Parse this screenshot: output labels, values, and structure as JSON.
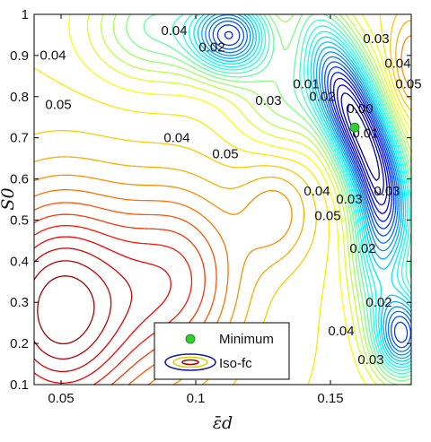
{
  "chart_data": {
    "type": "contour",
    "xlabel": "ε̄d",
    "ylabel": "S0",
    "xlim": [
      0.04,
      0.18
    ],
    "ylim": [
      0.1,
      1.0
    ],
    "x_ticks": [
      "0.05",
      "0.1",
      "0.15"
    ],
    "y_ticks": [
      "0.1",
      "0.2",
      "0.3",
      "0.4",
      "0.5",
      "0.6",
      "0.7",
      "0.8",
      "0.9",
      "1"
    ],
    "grid": false,
    "colormap": "jet",
    "contour_labels": [
      {
        "text": "0.04",
        "x": 0.047,
        "y": 0.89
      },
      {
        "text": "0.04",
        "x": 0.092,
        "y": 0.95
      },
      {
        "text": "0.02",
        "x": 0.106,
        "y": 0.91
      },
      {
        "text": "0.05",
        "x": 0.049,
        "y": 0.77
      },
      {
        "text": "0.03",
        "x": 0.127,
        "y": 0.78
      },
      {
        "text": "0.04",
        "x": 0.093,
        "y": 0.69
      },
      {
        "text": "0.05",
        "x": 0.111,
        "y": 0.65
      },
      {
        "text": "0.02",
        "x": 0.147,
        "y": 0.79
      },
      {
        "text": "0.01",
        "x": 0.141,
        "y": 0.82
      },
      {
        "text": "0.03",
        "x": 0.167,
        "y": 0.93
      },
      {
        "text": "0.04",
        "x": 0.175,
        "y": 0.87
      },
      {
        "text": "0.05",
        "x": 0.179,
        "y": 0.82
      },
      {
        "text": "0.00",
        "x": 0.161,
        "y": 0.76
      },
      {
        "text": "0.04",
        "x": 0.145,
        "y": 0.56
      },
      {
        "text": "0.05",
        "x": 0.149,
        "y": 0.5
      },
      {
        "text": "0.03",
        "x": 0.157,
        "y": 0.54
      },
      {
        "text": "0.01",
        "x": 0.163,
        "y": 0.7
      },
      {
        "text": "0.03",
        "x": 0.171,
        "y": 0.56
      },
      {
        "text": "0.02",
        "x": 0.162,
        "y": 0.42
      },
      {
        "text": "0.02",
        "x": 0.168,
        "y": 0.29
      },
      {
        "text": "0.04",
        "x": 0.154,
        "y": 0.22
      },
      {
        "text": "0.03",
        "x": 0.165,
        "y": 0.15
      }
    ],
    "minimum": {
      "x": 0.159,
      "y": 0.725
    },
    "legend": {
      "position": "bottom-center",
      "entries": [
        "Minimum",
        "Iso-fc"
      ]
    },
    "colors": {
      "minimum_marker": "#33cc33",
      "low": "#00008f",
      "high": "#8f0000"
    }
  }
}
